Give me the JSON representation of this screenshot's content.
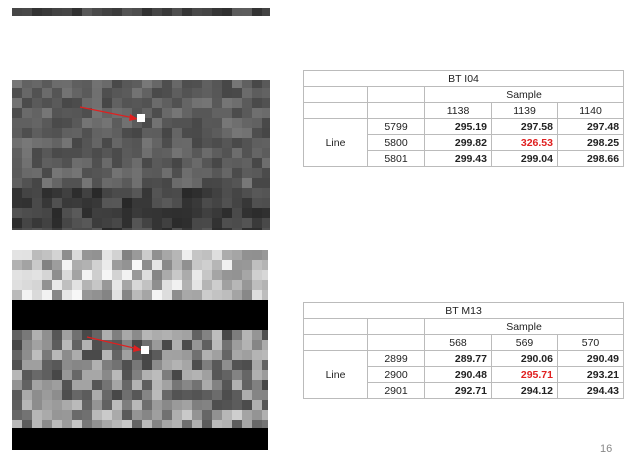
{
  "tables": [
    {
      "title": "BT I04",
      "group_header": "Sample",
      "columns": [
        "1138",
        "1139",
        "1140"
      ],
      "row_header": "Line",
      "rows": [
        {
          "line": "5799",
          "values": [
            "295.19",
            "297.58",
            "297.48"
          ]
        },
        {
          "line": "5800",
          "values": [
            "299.82",
            "326.53",
            "298.25"
          ]
        },
        {
          "line": "5801",
          "values": [
            "299.43",
            "299.04",
            "298.66"
          ]
        }
      ]
    },
    {
      "title": "BT M13",
      "group_header": "Sample",
      "columns": [
        "568",
        "569",
        "570"
      ],
      "row_header": "Line",
      "rows": [
        {
          "line": "2899",
          "values": [
            "289.77",
            "290.06",
            "290.49"
          ]
        },
        {
          "line": "2900",
          "values": [
            "290.48",
            "295.71",
            "293.21"
          ]
        },
        {
          "line": "2901",
          "values": [
            "292.71",
            "294.12",
            "294.43"
          ]
        }
      ]
    }
  ],
  "page_number": "16"
}
